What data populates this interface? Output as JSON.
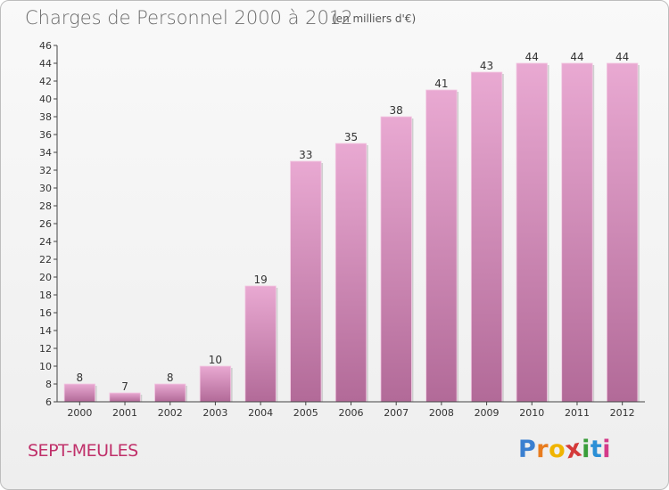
{
  "title": "Charges de Personnel 2000 à 2012",
  "unit": "(en milliers d'€)",
  "commune": "SEPT-MEULES",
  "brand": {
    "letters": [
      "P",
      "r",
      "o",
      "x",
      "i",
      "t",
      "i"
    ],
    "colors": [
      "#3a7fd0",
      "#e87c1e",
      "#f0b400",
      "#d43a3a",
      "#3a9d3a",
      "#2b8fd6",
      "#d43a8a"
    ]
  },
  "colors": {
    "bar_light": "#e9a9d2",
    "bar_dark": "#b26a98",
    "accent": "#c0306a"
  },
  "chart_data": {
    "type": "bar",
    "categories": [
      "2000",
      "2001",
      "2002",
      "2003",
      "2004",
      "2005",
      "2006",
      "2007",
      "2008",
      "2009",
      "2010",
      "2011",
      "2012"
    ],
    "values": [
      8,
      7,
      8,
      10,
      19,
      33,
      35,
      38,
      41,
      43,
      44,
      44,
      44
    ],
    "title": "Charges de Personnel 2000 à 2012",
    "ylim": [
      6,
      46
    ],
    "yticks": [
      6,
      8,
      10,
      12,
      14,
      16,
      18,
      20,
      22,
      24,
      26,
      28,
      30,
      32,
      34,
      36,
      38,
      40,
      42,
      44,
      46
    ],
    "grid": false,
    "data_labels": true
  }
}
